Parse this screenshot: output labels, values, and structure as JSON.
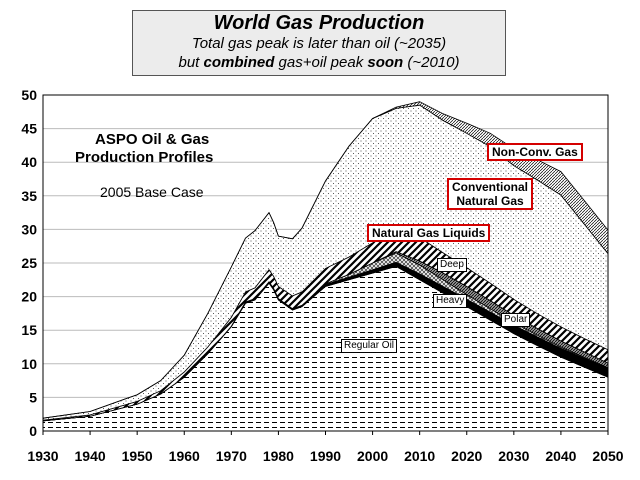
{
  "title": {
    "main": "World Gas Production",
    "line2": "Total gas peak is later than oil (~2035)",
    "line3_a": "but ",
    "line3_b": "combined",
    "line3_c": " gas+oil peak ",
    "line3_d": "soon",
    "line3_e": " (~2010)"
  },
  "annotations": {
    "heading_1": "ASPO Oil & Gas",
    "heading_2": "Production Profiles",
    "base_case": "2005 Base Case"
  },
  "chart_data": {
    "type": "area",
    "stacked": true,
    "title": "World Gas Production",
    "xlim": [
      1930,
      2050
    ],
    "ylim": [
      0,
      50
    ],
    "x_ticks": [
      1930,
      1940,
      1950,
      1960,
      1970,
      1980,
      1990,
      2000,
      2010,
      2020,
      2030,
      2040,
      2050
    ],
    "y_ticks": [
      0,
      5,
      10,
      15,
      20,
      25,
      30,
      35,
      40,
      45,
      50
    ],
    "grid": "horizontal",
    "x": [
      1930,
      1940,
      1950,
      1955,
      1960,
      1965,
      1970,
      1973,
      1975,
      1978,
      1979,
      1980,
      1983,
      1985,
      1990,
      1995,
      2000,
      2005,
      2010,
      2015,
      2020,
      2025,
      2030,
      2035,
      2040,
      2045,
      2050
    ],
    "series": [
      {
        "name": "Regular Oil",
        "fill": "horizontal-dashes",
        "values": [
          1.5,
          2.2,
          4.0,
          5.5,
          8.0,
          11.5,
          15.5,
          19.0,
          19.5,
          22.0,
          21.0,
          19.5,
          18.0,
          18.5,
          21.5,
          22.5,
          23.5,
          24.5,
          22.5,
          20.5,
          18.5,
          16.5,
          14.5,
          12.7,
          11.0,
          9.5,
          8.0
        ]
      },
      {
        "name": "Heavy",
        "fill": "solid-black",
        "values": [
          0,
          0,
          0,
          0,
          0,
          0,
          0.1,
          0.2,
          0.2,
          0.2,
          0.2,
          0.2,
          0.2,
          0.2,
          0.3,
          0.4,
          0.5,
          0.6,
          0.9,
          1.0,
          1.1,
          1.2,
          1.25,
          1.3,
          1.3,
          1.3,
          1.3
        ]
      },
      {
        "name": "Deep",
        "fill": "crosshatch",
        "values": [
          0,
          0,
          0,
          0,
          0,
          0,
          0,
          0,
          0,
          0,
          0,
          0,
          0,
          0,
          0.1,
          0.4,
          1.0,
          1.4,
          1.3,
          1.0,
          0.7,
          0.5,
          0.35,
          0.25,
          0.2,
          0.15,
          0.1
        ]
      },
      {
        "name": "Polar",
        "fill": "dense-diagonal",
        "values": [
          0,
          0,
          0,
          0,
          0,
          0,
          0,
          0,
          0,
          0,
          0,
          0,
          0,
          0,
          0,
          0,
          0,
          0.2,
          0.6,
          1.0,
          1.2,
          1.2,
          1.1,
          1.0,
          0.9,
          0.8,
          0.7
        ]
      },
      {
        "name": "Natural Gas Liquids",
        "fill": "diagonal-stripes",
        "values": [
          0.1,
          0.2,
          0.4,
          0.5,
          0.8,
          1.0,
          1.3,
          1.5,
          1.6,
          1.8,
          1.8,
          1.8,
          1.9,
          2.0,
          2.3,
          2.6,
          3.0,
          3.8,
          3.5,
          3.0,
          2.8,
          2.6,
          2.4,
          2.2,
          2.1,
          2.0,
          2.0
        ]
      },
      {
        "name": "Conventional Natural Gas",
        "fill": "dots",
        "values": [
          0.3,
          0.5,
          1.0,
          1.5,
          2.5,
          5.0,
          7.5,
          8.0,
          8.5,
          8.5,
          8.0,
          7.5,
          8.5,
          9.5,
          13.0,
          16.5,
          18.5,
          17.5,
          19.7,
          19.7,
          20.0,
          20.3,
          19.9,
          19.9,
          19.6,
          17.0,
          14.3
        ]
      },
      {
        "name": "Non-Conv. Gas",
        "fill": "fine-diagonal",
        "values": [
          0,
          0,
          0,
          0,
          0,
          0,
          0,
          0,
          0,
          0,
          0,
          0,
          0,
          0,
          0,
          0,
          0,
          0.2,
          0.5,
          1.0,
          1.5,
          2.0,
          2.5,
          3.0,
          3.5,
          3.5,
          3.5
        ]
      }
    ]
  },
  "labels": {
    "non_conv": "Non-Conv. Gas",
    "conv_1": "Conventional",
    "conv_2": "Natural Gas",
    "ngl": "Natural Gas Liquids",
    "deep": "Deep",
    "heavy": "Heavy",
    "polar": "Polar",
    "regular": "Regular Oil"
  },
  "colors": {
    "label_border": "#d40000",
    "heavy_fill": "#000000",
    "line": "#000000"
  }
}
